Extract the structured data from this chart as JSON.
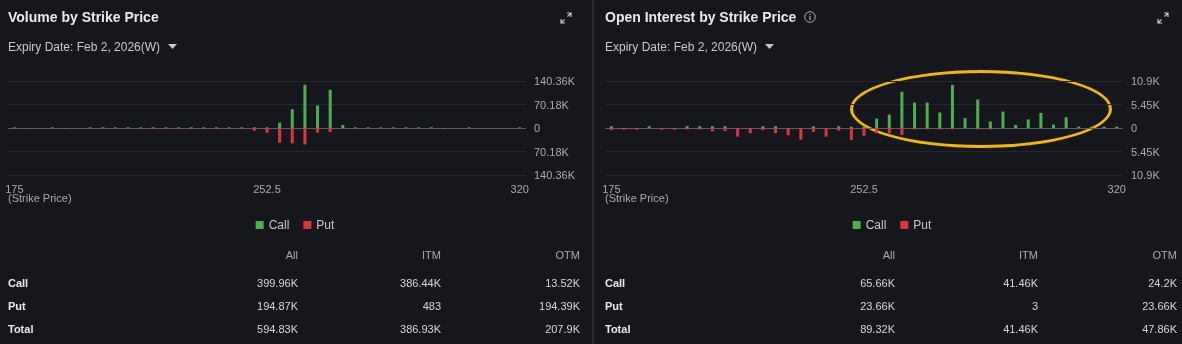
{
  "chart_data": [
    {
      "type": "bar",
      "title": "Volume by Strike Price",
      "subtitle": "Expiry Date: Feb 2, 2026(W)",
      "xlabel": "(Strike Price)",
      "categories": [
        "175",
        null,
        null,
        null,
        null,
        null,
        null,
        null,
        null,
        null,
        null,
        null,
        null,
        null,
        null,
        null,
        null,
        null,
        null,
        null,
        "252.5",
        null,
        null,
        null,
        null,
        null,
        null,
        null,
        null,
        null,
        null,
        null,
        null,
        null,
        null,
        null,
        null,
        null,
        null,
        null,
        "320"
      ],
      "series": [
        {
          "name": "Call",
          "color": "#4caf50",
          "values": [
            2000,
            0,
            0,
            2000,
            0,
            0,
            2000,
            2000,
            2000,
            2000,
            2000,
            2000,
            2000,
            2000,
            2000,
            2000,
            2000,
            2000,
            2000,
            2000,
            2000,
            16000,
            56000,
            129000,
            67000,
            114000,
            9000,
            2000,
            2000,
            2000,
            2000,
            2000,
            2000,
            2000,
            0,
            0,
            2000,
            0,
            0,
            0,
            2000
          ]
        },
        {
          "name": "Put",
          "color": "#e0343d",
          "values": [
            -2000,
            -2000,
            0,
            0,
            -2000,
            0,
            0,
            0,
            0,
            0,
            -2000,
            -2000,
            -2000,
            -2000,
            -2000,
            -2000,
            -2000,
            -2000,
            -2000,
            -8000,
            -14000,
            -44000,
            -46000,
            -49000,
            -14000,
            -12000,
            0,
            -2000,
            -2000,
            0,
            0,
            0,
            0,
            0,
            -2000,
            0,
            0,
            0,
            0,
            0,
            0
          ]
        }
      ],
      "ylim": [
        -140360,
        140360
      ],
      "yticks": [
        {
          "value": -140360,
          "label": "140.36K"
        },
        {
          "value": -70180,
          "label": "70.18K"
        },
        0,
        {
          "value": 70180,
          "label": "70.18K"
        },
        {
          "value": 140360,
          "label": "140.36K"
        }
      ],
      "grid": "y",
      "legend": "bottom",
      "annotations": [
        "All",
        "ITM",
        "OTM",
        "Call",
        "399.96K",
        "386.44K",
        "13.52K",
        "Put",
        "194.87K",
        "483",
        "194.39K",
        "Total",
        "594.83K",
        "386.93K",
        "207.9K"
      ]
    },
    {
      "type": "bar",
      "title": "Open Interest by Strike Price",
      "subtitle": "Expiry Date: Feb 2, 2026(W)",
      "xlabel": "(Strike Price)",
      "categories": [
        "175",
        null,
        null,
        null,
        null,
        null,
        null,
        null,
        null,
        null,
        null,
        null,
        null,
        null,
        null,
        null,
        null,
        null,
        null,
        null,
        "252.5",
        null,
        null,
        null,
        null,
        null,
        null,
        null,
        null,
        null,
        null,
        null,
        null,
        null,
        null,
        null,
        null,
        null,
        null,
        null,
        "320"
      ],
      "series": [
        {
          "name": "Call",
          "color": "#4caf50",
          "values": [
            400,
            0,
            0,
            400,
            0,
            0,
            400,
            400,
            400,
            400,
            0,
            0,
            400,
            400,
            0,
            0,
            400,
            0,
            400,
            300,
            300,
            2200,
            3100,
            8400,
            5900,
            5900,
            3600,
            10000,
            2300,
            6600,
            1500,
            3800,
            700,
            2000,
            3500,
            800,
            2500,
            300,
            300,
            300,
            300
          ]
        },
        {
          "name": "Put",
          "color": "#e0343d",
          "values": [
            -500,
            -400,
            -400,
            0,
            -400,
            -400,
            -300,
            -300,
            -800,
            -700,
            -2000,
            -1200,
            -500,
            -1200,
            -1700,
            -2700,
            -900,
            -2000,
            -600,
            -2800,
            -1800,
            -1200,
            -1200,
            -1600,
            -300,
            -300,
            -300,
            -300,
            0,
            -300,
            -300,
            0,
            0,
            0,
            0,
            0,
            0,
            0,
            0,
            0,
            0
          ]
        }
      ],
      "ylim": [
        -10900,
        10900
      ],
      "yticks": [
        {
          "value": -10900,
          "label": "10.9K"
        },
        {
          "value": -5450,
          "label": "5.45K"
        },
        0,
        {
          "value": 5450,
          "label": "5.45K"
        },
        {
          "value": 10900,
          "label": "10.9K"
        }
      ],
      "grid": "y",
      "legend": "bottom",
      "annotations": [
        "All",
        "ITM",
        "OTM",
        "Call",
        "65.66K",
        "41.46K",
        "24.2K",
        "Put",
        "23.66K",
        "3",
        "23.66K",
        "Total",
        "89.32K",
        "41.46K",
        "47.86K"
      ]
    }
  ]
}
